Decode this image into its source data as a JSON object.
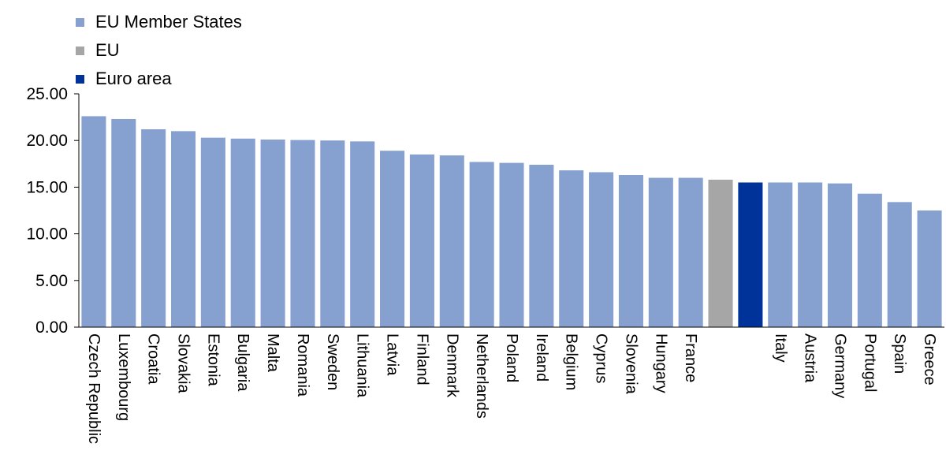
{
  "colors": {
    "member": "#86A0D0",
    "eu": "#A6A6A6",
    "euro": "#003399",
    "axis": "#000000"
  },
  "legend": {
    "items": [
      {
        "label": "EU Member States",
        "color": "#86A0D0"
      },
      {
        "label": "EU",
        "color": "#A6A6A6"
      },
      {
        "label": "Euro area",
        "color": "#003399"
      }
    ]
  },
  "chart_data": {
    "type": "bar",
    "title": "",
    "xlabel": "",
    "ylabel": "",
    "ylim": [
      0,
      25
    ],
    "yticks": [
      "0.00",
      "5.00",
      "10.00",
      "15.00",
      "20.00",
      "25.00"
    ],
    "grid": false,
    "legend_position": "top-left",
    "categories": [
      "Czech Republic",
      "Luxembourg",
      "Croatia",
      "Slovakia",
      "Estonia",
      "Bulgaria",
      "Malta",
      "Romania",
      "Sweden",
      "Lithuania",
      "Latvia",
      "Finland",
      "Denmark",
      "Netherlands",
      "Poland",
      "Ireland",
      "Belgium",
      "Cyprus",
      "Slovenia",
      "Hungary",
      "France",
      "",
      "",
      "Italy",
      "Austria",
      "Germany",
      "Portugal",
      "Spain",
      "Greece"
    ],
    "values": [
      22.6,
      22.3,
      21.2,
      21.0,
      20.3,
      20.2,
      20.1,
      20.05,
      20.0,
      19.9,
      18.9,
      18.5,
      18.4,
      17.7,
      17.6,
      17.4,
      16.8,
      16.6,
      16.3,
      16.0,
      16.0,
      15.8,
      15.5,
      15.5,
      15.5,
      15.4,
      14.3,
      13.4,
      12.5
    ],
    "groups": [
      "member",
      "member",
      "member",
      "member",
      "member",
      "member",
      "member",
      "member",
      "member",
      "member",
      "member",
      "member",
      "member",
      "member",
      "member",
      "member",
      "member",
      "member",
      "member",
      "member",
      "member",
      "eu",
      "euro",
      "member",
      "member",
      "member",
      "member",
      "member",
      "member"
    ]
  }
}
